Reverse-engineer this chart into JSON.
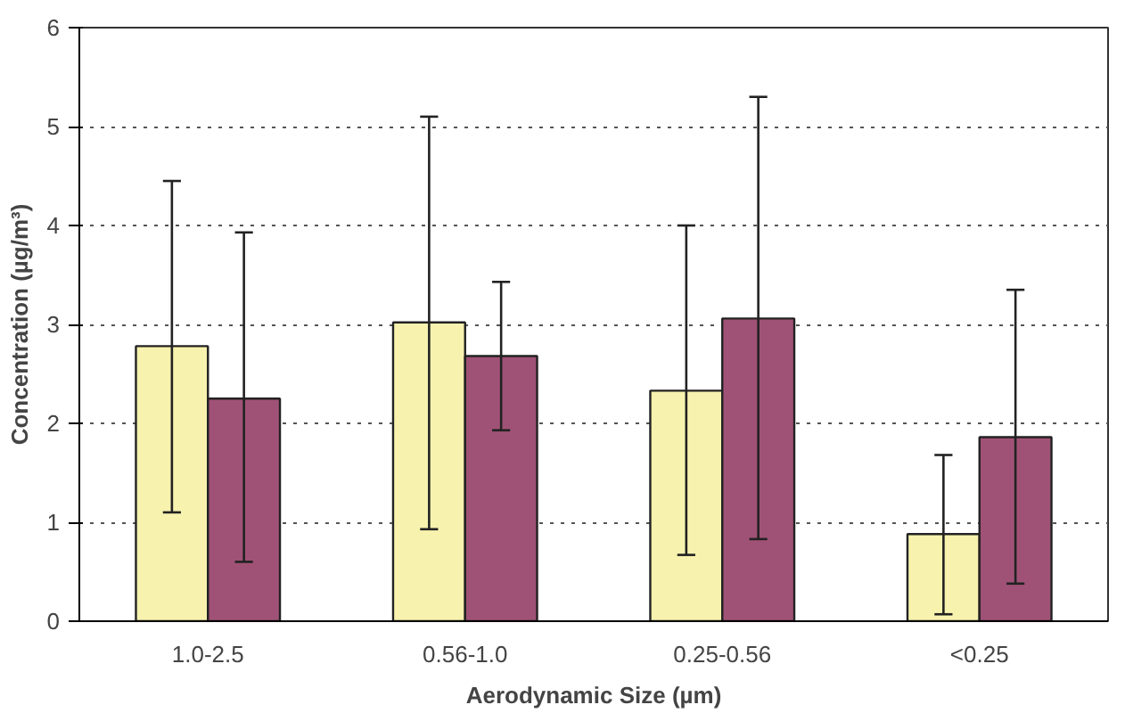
{
  "chart_data": {
    "type": "bar",
    "xlabel": "Aerodynamic Size (µm)",
    "ylabel": "Concentration (µg/m³)",
    "categories": [
      "1.0-2.5",
      "0.56-1.0",
      "0.25-0.56",
      "<0.25"
    ],
    "series": [
      {
        "color": "#f7f2ae",
        "values": [
          2.78,
          3.02,
          2.33,
          0.88
        ],
        "errors": [
          [
            1.1,
            4.45
          ],
          [
            0.93,
            5.1
          ],
          [
            0.67,
            4.0
          ],
          [
            0.07,
            1.68
          ]
        ]
      },
      {
        "color": "#a05276",
        "values": [
          2.25,
          2.68,
          3.06,
          1.86
        ],
        "errors": [
          [
            0.6,
            3.93
          ],
          [
            1.93,
            3.43
          ],
          [
            0.83,
            5.3
          ],
          [
            0.38,
            3.35
          ]
        ]
      }
    ],
    "ylim": [
      0,
      6
    ],
    "yticks": [
      0,
      1,
      2,
      3,
      4,
      5,
      6
    ],
    "grid": "y"
  }
}
